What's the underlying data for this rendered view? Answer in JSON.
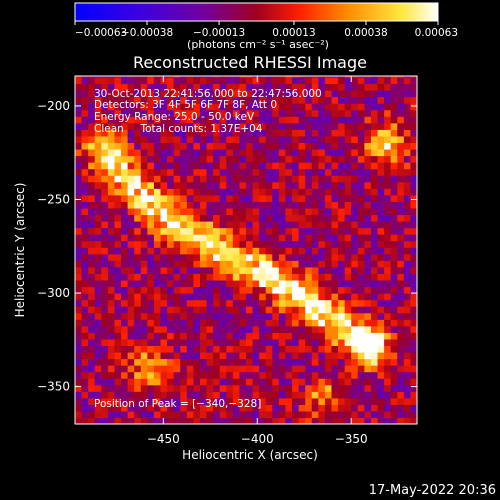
{
  "colorbar": {
    "ticks": [
      {
        "value": -0.00063,
        "label": "−0.00063"
      },
      {
        "value": -0.00038,
        "label": "−0.00038"
      },
      {
        "value": -0.00013,
        "label": "−0.00013"
      },
      {
        "value": 0.00013,
        "label": "0.00013"
      },
      {
        "value": 0.00038,
        "label": "0.00038"
      },
      {
        "value": 0.00063,
        "label": "0.00063"
      }
    ],
    "range": [
      -0.00063,
      0.00063
    ],
    "units_label": "(photons cm⁻² s⁻¹ asec⁻²)",
    "colors": [
      "#0000ff",
      "#4a00d0",
      "#7a008a",
      "#b00000",
      "#ff3a00",
      "#ff9a00",
      "#ffff60",
      "#ffffff"
    ]
  },
  "chart_data": {
    "type": "heatmap",
    "title": "Reconstructed RHESSI Image",
    "xlabel": "Heliocentric X (arcsec)",
    "ylabel": "Heliocentric Y (arcsec)",
    "xlim": [
      -497,
      -315
    ],
    "ylim": [
      -370,
      -184
    ],
    "xticks": [
      {
        "value": -450,
        "label": "−450"
      },
      {
        "value": -400,
        "label": "−400"
      },
      {
        "value": -350,
        "label": "−350"
      }
    ],
    "yticks": [
      {
        "value": -200,
        "label": "−200"
      },
      {
        "value": -250,
        "label": "−250"
      },
      {
        "value": -300,
        "label": "−300"
      },
      {
        "value": -350,
        "label": "−350"
      }
    ],
    "emission_ridge": [
      {
        "x": -482,
        "y": -223
      },
      {
        "x": -465,
        "y": -244
      },
      {
        "x": -445,
        "y": -262
      },
      {
        "x": -420,
        "y": -277
      },
      {
        "x": -398,
        "y": -288
      },
      {
        "x": -378,
        "y": -300
      },
      {
        "x": -358,
        "y": -316
      },
      {
        "x": -340,
        "y": -328
      }
    ],
    "secondary_sources": [
      {
        "x": -332,
        "y": -220,
        "value": 0.00055
      },
      {
        "x": -458,
        "y": -340,
        "value": 0.0004
      },
      {
        "x": -365,
        "y": -355,
        "value": 0.00035
      }
    ],
    "peak": {
      "x": -340,
      "y": -328
    },
    "annotations": [
      "30-Oct-2013 22:41:56.000 to 22:47:56.000",
      "Detectors: 3F 4F 5F 6F 7F 8F, Att 0",
      "Energy Range: 25.0 - 50.0 keV",
      "Clean     Total counts: 1.37E+04"
    ],
    "peak_label": "Position of Peak = [−340,−328]"
  },
  "timestamp": "17-May-2022 20:36"
}
